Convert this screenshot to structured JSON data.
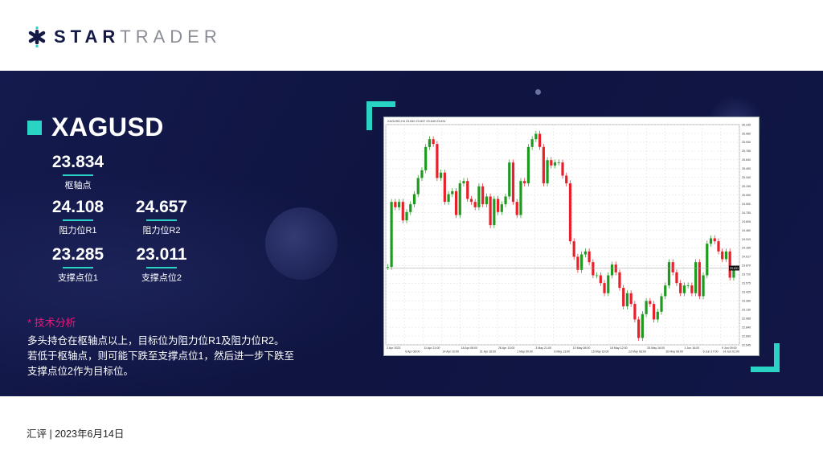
{
  "brand": {
    "bold": "STAR",
    "light": "TRADER",
    "accent": "#2ad4c4",
    "navy": "#141a45"
  },
  "symbol": "XAGUSD",
  "levels": {
    "pivot": {
      "value": "23.834",
      "label": "枢轴点"
    },
    "r1": {
      "value": "24.108",
      "label": "阻力位R1"
    },
    "r2": {
      "value": "24.657",
      "label": "阻力位R2"
    },
    "s1": {
      "value": "23.285",
      "label": "支撑点位1"
    },
    "s2": {
      "value": "23.011",
      "label": "支撑点位2"
    }
  },
  "analysis": {
    "heading": "* 技术分析",
    "lines": [
      "多头持仓在枢轴点以上，目标位为阻力位R1及阻力位R2。",
      "若低于枢轴点，则可能下跌至支撑点位1，然后进一步下跌至",
      "支撑点位2作为目标位。"
    ]
  },
  "footer": "汇评 | 2023年6月14日",
  "chart_data": {
    "type": "candlestick",
    "title": "XAGUSD,H4 23.640 23.837 23.640 23.831",
    "ylim": [
      22.545,
      26.235
    ],
    "grid": true,
    "up_color": "#1e9a1e",
    "down_color": "#e8202a",
    "current_price": "23.831",
    "y_ticks": [
      "26.235",
      "26.080",
      "25.930",
      "25.785",
      "25.640",
      "25.490",
      "25.340",
      "25.195",
      "25.050",
      "24.900",
      "24.755",
      "24.605",
      "24.460",
      "24.310",
      "24.165",
      "24.017",
      "23.870",
      "23.720",
      "23.575",
      "23.425",
      "23.280",
      "23.130",
      "22.985",
      "22.840",
      "22.690",
      "22.545"
    ],
    "x_ticks": [
      "3 Apr 2023",
      "6 Apr 08:00",
      "11 Apr 21:00",
      "14 Apr 10:00",
      "18 Apr 08:00",
      "21 Apr 16:00",
      "26 Apr 13:00",
      "1 May 00:00",
      "3 May 21:00",
      "8 May 13:00",
      "10 May 08:00",
      "15 May 16:00",
      "18 May 12:00",
      "23 May 08:00",
      "25 May 16:00",
      "30 May 08:00",
      "1 Jun 16:00",
      "6 Jun 17:00",
      "9 Jun 09:00",
      "14 Jun 01:00"
    ],
    "closes": [
      23.85,
      23.85,
      24.94,
      24.85,
      24.94,
      24.63,
      24.77,
      24.9,
      25.07,
      25.34,
      25.47,
      25.86,
      25.99,
      25.91,
      25.34,
      25.43,
      24.94,
      25.07,
      25.12,
      24.72,
      25.25,
      25.29,
      24.99,
      24.94,
      24.85,
      25.2,
      24.9,
      25.03,
      24.55,
      24.99,
      24.77,
      24.9,
      25.03,
      25.6,
      24.94,
      24.72,
      25.29,
      25.25,
      25.86,
      25.99,
      26.08,
      25.86,
      25.25,
      25.64,
      25.55,
      25.6,
      25.6,
      25.38,
      25.25,
      24.28,
      24.02,
      23.8,
      24.06,
      24.11,
      23.93,
      23.71,
      23.71,
      23.58,
      23.41,
      23.71,
      23.89,
      23.76,
      23.5,
      23.19,
      23.41,
      23.23,
      22.97,
      22.66,
      23.06,
      23.28,
      23.23,
      22.97,
      23.1,
      23.36,
      23.54,
      23.93,
      23.76,
      23.58,
      23.41,
      23.54,
      23.54,
      23.41,
      23.93,
      23.36,
      23.71,
      24.24,
      24.33,
      24.28,
      24.11,
      23.98,
      24.11,
      23.67,
      23.8
    ]
  }
}
